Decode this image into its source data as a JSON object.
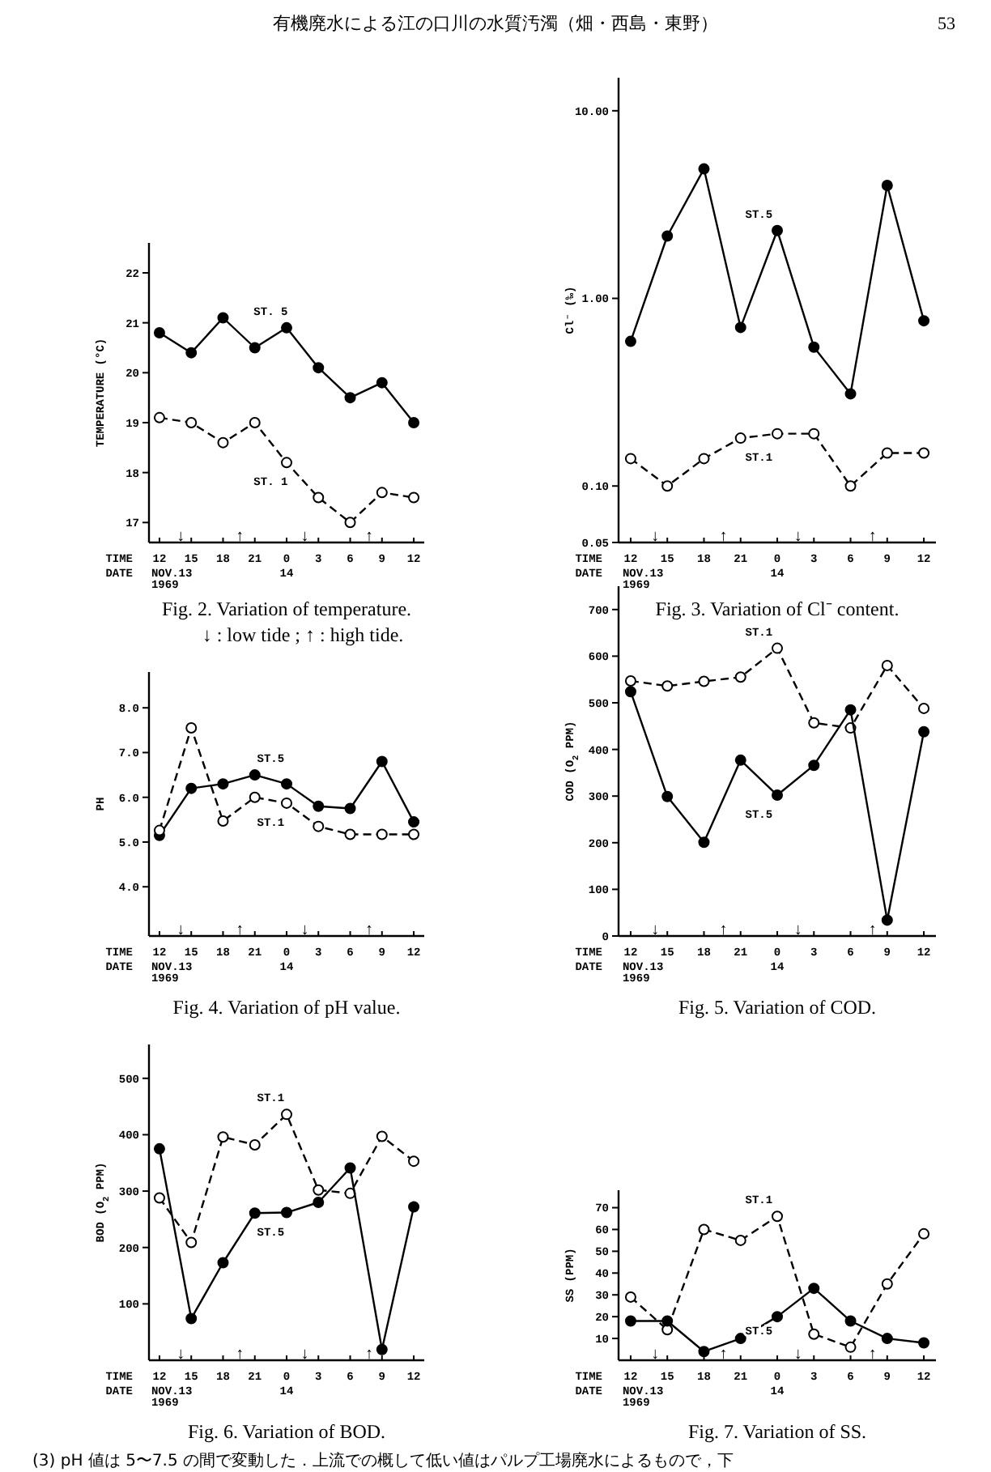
{
  "chart_data": [
    {
      "type": "line",
      "title": "Fig. 2.  Variation of temperature.",
      "subtitle": "↓ : low tide ;  ↑ : high tide.",
      "ylabel": "TEMPERATURE (°C)",
      "xlabel": "TIME",
      "categories": [
        "12",
        "15",
        "18",
        "21",
        "0",
        "3",
        "6",
        "9",
        "12"
      ],
      "ylim": [
        16.6,
        22.6
      ],
      "yticks": [
        17,
        18,
        19,
        20,
        21,
        22
      ],
      "marker": "circle",
      "series": [
        {
          "name": "ST. 5",
          "color": "#000000",
          "line_style": "solid",
          "values": [
            20.8,
            20.4,
            21.1,
            20.5,
            20.9,
            20.1,
            19.5,
            19.8,
            19.0
          ]
        },
        {
          "name": "ST. 1",
          "color": "#000000",
          "line_style": "dashed",
          "values": [
            19.1,
            19.0,
            18.6,
            19.0,
            18.2,
            17.5,
            17.0,
            17.6,
            17.5
          ]
        }
      ],
      "annotations": [
        "DATE",
        "NOV.13",
        "1969",
        "14",
        "↓",
        "↑",
        "↓",
        "↑",
        "有機廃水による江の口川の水質汚濁（畑・西島・東野）",
        "53"
      ]
    },
    {
      "type": "line",
      "title": "Fig. 3.  Variation of Cl⁻ content.",
      "ylabel": "Cl⁻ (‰)",
      "xlabel": "TIME",
      "log": true,
      "categories": [
        "12",
        "15",
        "18",
        "21",
        "0",
        "3",
        "6",
        "9",
        "12"
      ],
      "ylim": [
        0.05,
        15
      ],
      "yticks": [
        {
          "value": 0.05,
          "label": "0.05"
        },
        {
          "value": 0.1,
          "label": "0.10"
        },
        {
          "value": 1,
          "label": "1.00"
        },
        {
          "value": 10,
          "label": "10.00"
        }
      ],
      "marker": "circle",
      "series": [
        {
          "name": "ST.5",
          "color": "#000000",
          "line_style": "solid",
          "values": [
            0.59,
            2.15,
            4.9,
            0.7,
            2.3,
            0.55,
            0.31,
            4.0,
            0.76
          ]
        },
        {
          "name": "ST.1",
          "color": "#000000",
          "line_style": "dashed",
          "values": [
            0.14,
            0.1,
            0.14,
            0.18,
            0.19,
            0.19,
            0.1,
            0.15,
            0.15
          ]
        }
      ],
      "annotations": [
        "DATE",
        "NOV.13",
        "1969",
        "14",
        "↓",
        "↑",
        "↓",
        "↑"
      ]
    },
    {
      "type": "line",
      "title": "Fig. 4.  Variation of pH value.",
      "ylabel": "PH",
      "xlabel": "TIME",
      "categories": [
        "12",
        "15",
        "18",
        "21",
        "0",
        "3",
        "6",
        "9",
        "12"
      ],
      "ylim": [
        2.9,
        8.8
      ],
      "yticks": [
        {
          "value": 4,
          "label": "4.0"
        },
        {
          "value": 5,
          "label": "5.0"
        },
        {
          "value": 6,
          "label": "6.0"
        },
        {
          "value": 7,
          "label": "7.0"
        },
        {
          "value": 8,
          "label": "8.0"
        }
      ],
      "marker": "circle",
      "series": [
        {
          "name": "ST.5",
          "color": "#000000",
          "line_style": "solid",
          "values": [
            5.15,
            6.2,
            6.3,
            6.5,
            6.3,
            5.8,
            5.75,
            6.8,
            5.45
          ]
        },
        {
          "name": "ST.1",
          "color": "#000000",
          "line_style": "dashed",
          "values": [
            5.26,
            7.55,
            5.47,
            6.0,
            5.87,
            5.35,
            5.17,
            5.17,
            5.17
          ]
        }
      ],
      "annotations": [
        "DATE",
        "NOV.13",
        "1969",
        "14",
        "↓",
        "↑",
        "↓",
        "↑"
      ]
    },
    {
      "type": "line",
      "title": "Fig. 5.  Variation of COD.",
      "ylabel": "COD (O$_{2}$ PPM)",
      "xlabel": "TIME",
      "categories": [
        "12",
        "15",
        "18",
        "21",
        "0",
        "3",
        "6",
        "9",
        "12"
      ],
      "ylim": [
        0,
        750
      ],
      "yticks": [
        0,
        100,
        200,
        300,
        400,
        500,
        600,
        700
      ],
      "marker": "circle",
      "series": [
        {
          "name": "ST.1",
          "color": "#000000",
          "line_style": "dashed",
          "values": [
            547,
            536,
            546,
            555,
            617,
            457,
            446,
            580,
            488
          ]
        },
        {
          "name": "ST.5",
          "color": "#000000",
          "line_style": "solid",
          "values": [
            524,
            299,
            201,
            377,
            302,
            366,
            485,
            34,
            438
          ]
        }
      ],
      "annotations": [
        "DATE",
        "NOV.13",
        "1969",
        "14",
        "↓",
        "↑",
        "↓",
        "↑"
      ]
    },
    {
      "type": "line",
      "title": "Fig. 6.  Variation of BOD.",
      "ylabel": "BOD (O$_{2}$ PPM)",
      "xlabel": "TIME",
      "categories": [
        "12",
        "15",
        "18",
        "21",
        "0",
        "3",
        "6",
        "9",
        "12"
      ],
      "ylim": [
        0,
        560
      ],
      "yticks": [
        100,
        200,
        300,
        400,
        500
      ],
      "marker": "circle",
      "series": [
        {
          "name": "ST.1",
          "color": "#000000",
          "line_style": "dashed",
          "values": [
            288,
            209,
            396,
            382,
            436,
            302,
            296,
            397,
            353
          ]
        },
        {
          "name": "ST.5",
          "color": "#000000",
          "line_style": "solid",
          "values": [
            375,
            74,
            173,
            261,
            262,
            280,
            341,
            19,
            272
          ]
        }
      ],
      "annotations": [
        "DATE",
        "NOV.13",
        "1969",
        "14",
        "↓",
        "↑",
        "↓",
        "↑"
      ]
    },
    {
      "type": "line",
      "title": "Fig. 7.  Variation of SS.",
      "ylabel": "SS (PPM)",
      "xlabel": "TIME",
      "categories": [
        "12",
        "15",
        "18",
        "21",
        "0",
        "3",
        "6",
        "9",
        "12"
      ],
      "ylim": [
        0,
        78
      ],
      "yticks": [
        10,
        20,
        30,
        40,
        50,
        60,
        70
      ],
      "marker": "circle",
      "series": [
        {
          "name": "ST.1",
          "color": "#000000",
          "line_style": "dashed",
          "values": [
            29,
            14,
            60,
            55,
            66,
            12,
            6,
            35,
            58
          ]
        },
        {
          "name": "ST.5",
          "color": "#000000",
          "line_style": "solid",
          "values": [
            18,
            18,
            4,
            10,
            20,
            33,
            18,
            10,
            8
          ]
        }
      ],
      "annotations": [
        "DATE",
        "NOV.13",
        "1969",
        "14",
        "↓",
        "↑",
        "↓",
        "↑",
        "(3)  pH 値は 5〜7.5 の間で変動した．上流での概して低い値はパルプ工場廃水によるもので，下"
      ]
    }
  ]
}
